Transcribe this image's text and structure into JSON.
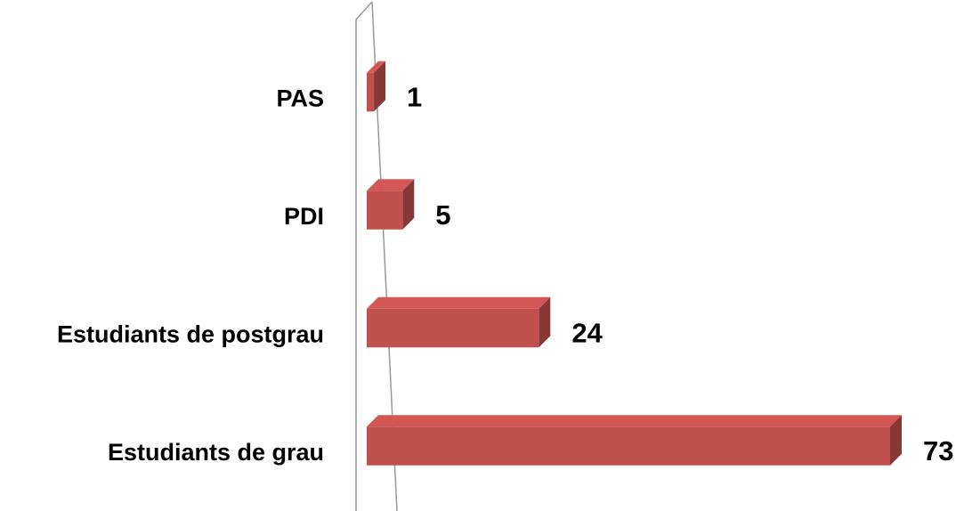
{
  "chart_data": {
    "type": "bar",
    "orientation": "horizontal",
    "categories": [
      "PAS",
      "PDI",
      "Estudiants de postgrau",
      "Estudiants de grau"
    ],
    "values": [
      1,
      5,
      24,
      73
    ],
    "color": "#c0504d"
  }
}
